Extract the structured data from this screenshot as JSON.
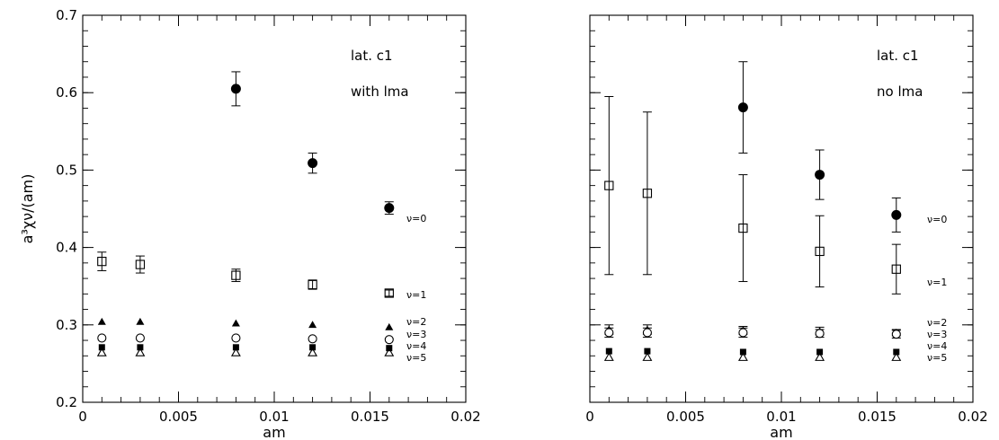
{
  "chart_data": [
    {
      "type": "scatter",
      "panel": "left",
      "xlabel": "am",
      "ylabel": "a³χν/(am)",
      "xlim": [
        0,
        0.02
      ],
      "ylim": [
        0.2,
        0.7
      ],
      "x_ticks": [
        0,
        0.005,
        0.01,
        0.015,
        0.02
      ],
      "x_tick_labels": [
        "0",
        "0.005",
        "0.01",
        "0.015",
        "0.02"
      ],
      "y_ticks": [
        0.2,
        0.3,
        0.4,
        0.5,
        0.6,
        0.7
      ],
      "y_tick_labels": [
        "0.2",
        "0.3",
        "0.4",
        "0.5",
        "0.6",
        "0.7"
      ],
      "annotations": [
        "lat. c1",
        "with lma"
      ],
      "grid": false,
      "series": [
        {
          "name": "ν=0",
          "marker": "filled-circle",
          "x": [
            0.008,
            0.012,
            0.016
          ],
          "y": [
            0.605,
            0.509,
            0.451
          ],
          "err": [
            0.022,
            0.013,
            0.008
          ]
        },
        {
          "name": "ν=1",
          "marker": "open-square",
          "x": [
            0.001,
            0.003,
            0.008,
            0.012,
            0.016
          ],
          "y": [
            0.382,
            0.378,
            0.364,
            0.352,
            0.341
          ],
          "err": [
            0.012,
            0.011,
            0.008,
            0.006,
            0.004
          ]
        },
        {
          "name": "ν=2",
          "marker": "filled-triangle",
          "x": [
            0.001,
            0.003,
            0.008,
            0.012,
            0.016
          ],
          "y": [
            0.304,
            0.304,
            0.302,
            0.3,
            0.297
          ],
          "err": [
            0,
            0,
            0,
            0,
            0
          ]
        },
        {
          "name": "ν=3",
          "marker": "open-circle",
          "x": [
            0.001,
            0.003,
            0.008,
            0.012,
            0.016
          ],
          "y": [
            0.283,
            0.283,
            0.283,
            0.282,
            0.281
          ],
          "err": [
            0,
            0,
            0,
            0,
            0
          ]
        },
        {
          "name": "ν=4",
          "marker": "filled-square",
          "x": [
            0.001,
            0.003,
            0.008,
            0.012,
            0.016
          ],
          "y": [
            0.271,
            0.271,
            0.271,
            0.271,
            0.27
          ],
          "err": [
            0,
            0,
            0,
            0,
            0
          ]
        },
        {
          "name": "ν=5",
          "marker": "open-triangle",
          "x": [
            0.001,
            0.003,
            0.008,
            0.012,
            0.016
          ],
          "y": [
            0.264,
            0.264,
            0.264,
            0.264,
            0.264
          ],
          "err": [
            0,
            0,
            0,
            0,
            0
          ]
        }
      ]
    },
    {
      "type": "scatter",
      "panel": "right",
      "xlabel": "am",
      "ylabel": "",
      "xlim": [
        0,
        0.02
      ],
      "ylim": [
        0.2,
        0.7
      ],
      "x_ticks": [
        0,
        0.005,
        0.01,
        0.015,
        0.02
      ],
      "x_tick_labels": [
        "0",
        "0.005",
        "0.01",
        "0.015",
        "0.02"
      ],
      "y_ticks": [
        0.2,
        0.3,
        0.4,
        0.5,
        0.6,
        0.7
      ],
      "y_tick_labels": [],
      "annotations": [
        "lat. c1",
        "no lma"
      ],
      "grid": false,
      "series": [
        {
          "name": "ν=0",
          "marker": "filled-circle",
          "x": [
            0.008,
            0.012,
            0.016
          ],
          "y": [
            0.581,
            0.494,
            0.442
          ],
          "err": [
            0.059,
            0.032,
            0.022
          ]
        },
        {
          "name": "ν=1",
          "marker": "open-square",
          "x": [
            0.001,
            0.003,
            0.008,
            0.012,
            0.016
          ],
          "y": [
            0.48,
            0.47,
            0.425,
            0.395,
            0.372
          ],
          "err": [
            0.115,
            0.105,
            0.069,
            0.046,
            0.032
          ]
        },
        {
          "name": "ν=2",
          "marker": "filled-triangle",
          "x": [
            0.001,
            0.003,
            0.008,
            0.012,
            0.016
          ],
          "y": [
            0.294,
            0.294,
            0.293,
            0.292,
            0.29
          ],
          "err": [
            0.006,
            0.006,
            0.005,
            0.005,
            0.004
          ]
        },
        {
          "name": "ν=3",
          "marker": "open-circle",
          "x": [
            0.001,
            0.003,
            0.008,
            0.012,
            0.016
          ],
          "y": [
            0.29,
            0.29,
            0.29,
            0.289,
            0.288
          ],
          "err": [
            0.006,
            0.006,
            0.006,
            0.005,
            0.005
          ]
        },
        {
          "name": "ν=4",
          "marker": "filled-square",
          "x": [
            0.001,
            0.003,
            0.008,
            0.012,
            0.016
          ],
          "y": [
            0.266,
            0.266,
            0.265,
            0.265,
            0.265
          ],
          "err": [
            0,
            0,
            0,
            0,
            0
          ]
        },
        {
          "name": "ν=5",
          "marker": "open-triangle",
          "x": [
            0.001,
            0.003,
            0.008,
            0.012,
            0.016
          ],
          "y": [
            0.258,
            0.258,
            0.258,
            0.258,
            0.258
          ],
          "err": [
            0,
            0,
            0,
            0,
            0
          ]
        }
      ]
    }
  ]
}
